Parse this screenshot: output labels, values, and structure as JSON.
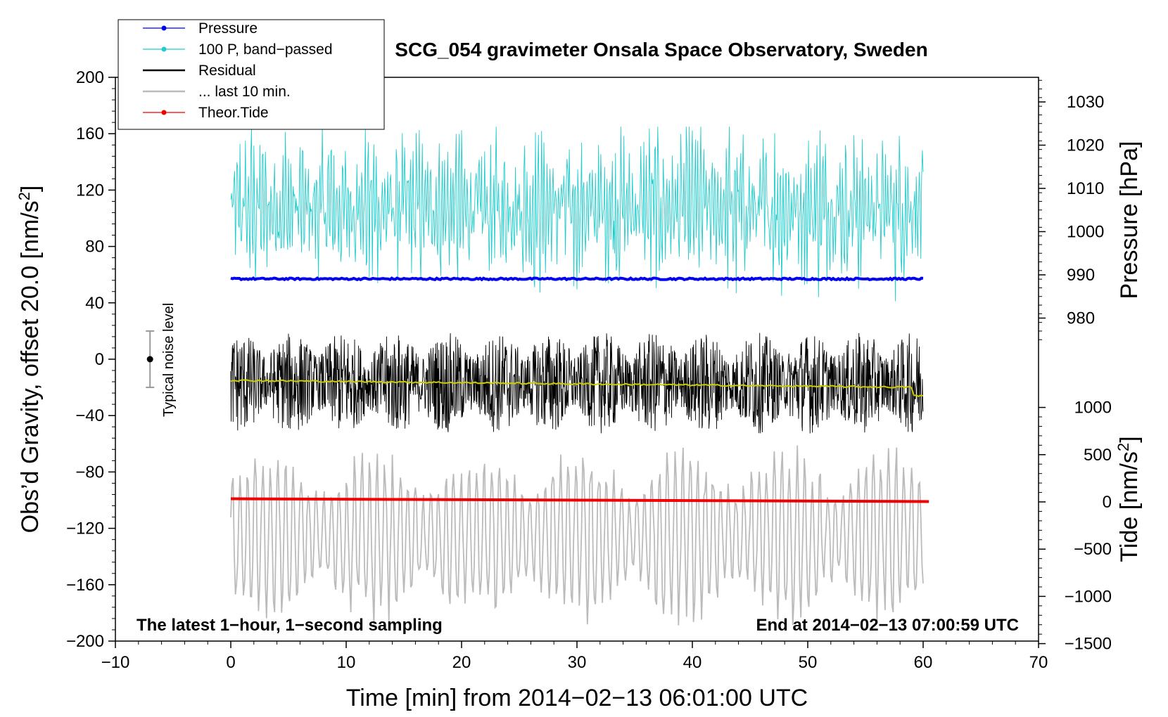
{
  "chart_data": {
    "type": "line",
    "title": "SCG_054 gravimeter Onsala Space Observatory, Sweden",
    "xlabel": "Time [min] from 2014−02−13 06:01:00 UTC",
    "ylabel_main": "Obs’d Gravity, offset 20.0 [nm/s",
    "ylabel_main_sup": "2",
    "ylabel_main_end": "]",
    "ylabel_pressure": "Pressure [hPa]",
    "ylabel_tide": "Tide [nm/s",
    "ylabel_tide_sup": "2",
    "ylabel_tide_end": "]",
    "xlim": [
      -10,
      70
    ],
    "ylim": [
      -200,
      200
    ],
    "x_ticks": [
      "−10",
      "0",
      "10",
      "20",
      "30",
      "40",
      "50",
      "60",
      "70"
    ],
    "y_ticks": [
      "200",
      "160",
      "120",
      "80",
      "40",
      "0",
      "−40",
      "−80",
      "−120",
      "−160",
      "−200"
    ],
    "pressure_ticks": [
      "1030",
      "1020",
      "1010",
      "1000",
      "990",
      "980"
    ],
    "pressure_tick_values": [
      1030,
      1020,
      1010,
      1000,
      990,
      980
    ],
    "tide_ticks": [
      "1000",
      "500",
      "0",
      "−500",
      "−1000",
      "−1500"
    ],
    "tide_tick_values": [
      1000,
      500,
      0,
      -500,
      -1000,
      -1500
    ],
    "bottom_left_note": "The latest 1−hour, 1−second sampling",
    "bottom_right_note": "End at 2014−02−13 07:00:59 UTC",
    "noise_label": "Typical noise level",
    "noise_bar": {
      "x": -7,
      "center": 0,
      "low": -20,
      "high": 20
    },
    "legend": [
      {
        "label": "Pressure",
        "color": "#0000ee",
        "marker": true
      },
      {
        "label": "100 P, band−passed",
        "color": "#22cccc",
        "marker": true
      },
      {
        "label": "Residual",
        "color": "#000000",
        "marker": false
      },
      {
        "label": "... last 10 min.",
        "color": "#bbbbbb",
        "marker": false
      },
      {
        "label": "Theor.Tide",
        "color": "#ee0000",
        "marker": true
      }
    ],
    "series": [
      {
        "name": "Pressure",
        "color": "#0000ee",
        "x_range": [
          0,
          60
        ],
        "level": 57,
        "amplitude": 1.2
      },
      {
        "name": "100 P, band−passed",
        "color": "#22cccc",
        "x_range": [
          0,
          60
        ],
        "center": 107,
        "amplitude": 55
      },
      {
        "name": "Residual",
        "color": "#000000",
        "x_range": [
          0,
          60
        ],
        "center": -17,
        "amplitude": 48
      },
      {
        "name": "Residual smoothed",
        "color": "#cccc00",
        "x_range": [
          0,
          60
        ],
        "start": -15,
        "end": -20
      },
      {
        "name": "... last 10 min.",
        "color": "#bbbbbb",
        "x_range": [
          0,
          60
        ],
        "center": -125,
        "amplitude": 55
      },
      {
        "name": "Theor.Tide",
        "color": "#ee0000",
        "x_range": [
          0,
          60.5
        ],
        "start": -99,
        "end": -101
      }
    ]
  }
}
